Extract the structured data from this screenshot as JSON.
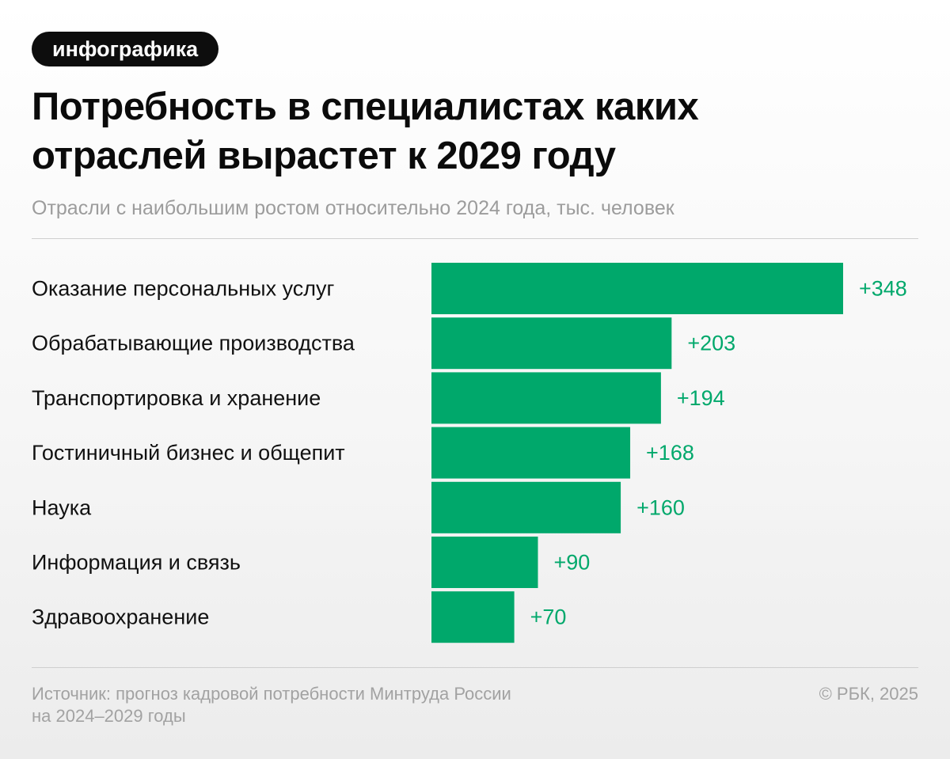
{
  "badge": "инфографика",
  "title": "Потребность в специалистах каких отраслей вырастет к 2029 году",
  "subtitle": "Отрасли с наибольшим ростом относительно 2024 года, тыс. человек",
  "colors": {
    "bar": "#00a86b",
    "value_text": "#00a86b",
    "badge_bg": "#0d0d0d"
  },
  "chart_data": {
    "type": "bar",
    "orientation": "horizontal",
    "categories": [
      "Оказание персональных услуг",
      "Обрабатывающие производства",
      "Транспортировка и хранение",
      "Гостиничный бизнес и общепит",
      "Наука",
      "Информация и связь",
      "Здравоохранение"
    ],
    "values": [
      348,
      203,
      194,
      168,
      160,
      90,
      70
    ],
    "value_labels": [
      "+348",
      "+203",
      "+194",
      "+168",
      "+160",
      "+90",
      "+70"
    ],
    "xlim": [
      0,
      348
    ],
    "grid": false,
    "legend": "none"
  },
  "footer": {
    "source_line1": "Источник: прогноз кадровой потребности Минтруда России",
    "source_line2": "на 2024–2029 годы",
    "copyright": "© РБК, 2025"
  }
}
